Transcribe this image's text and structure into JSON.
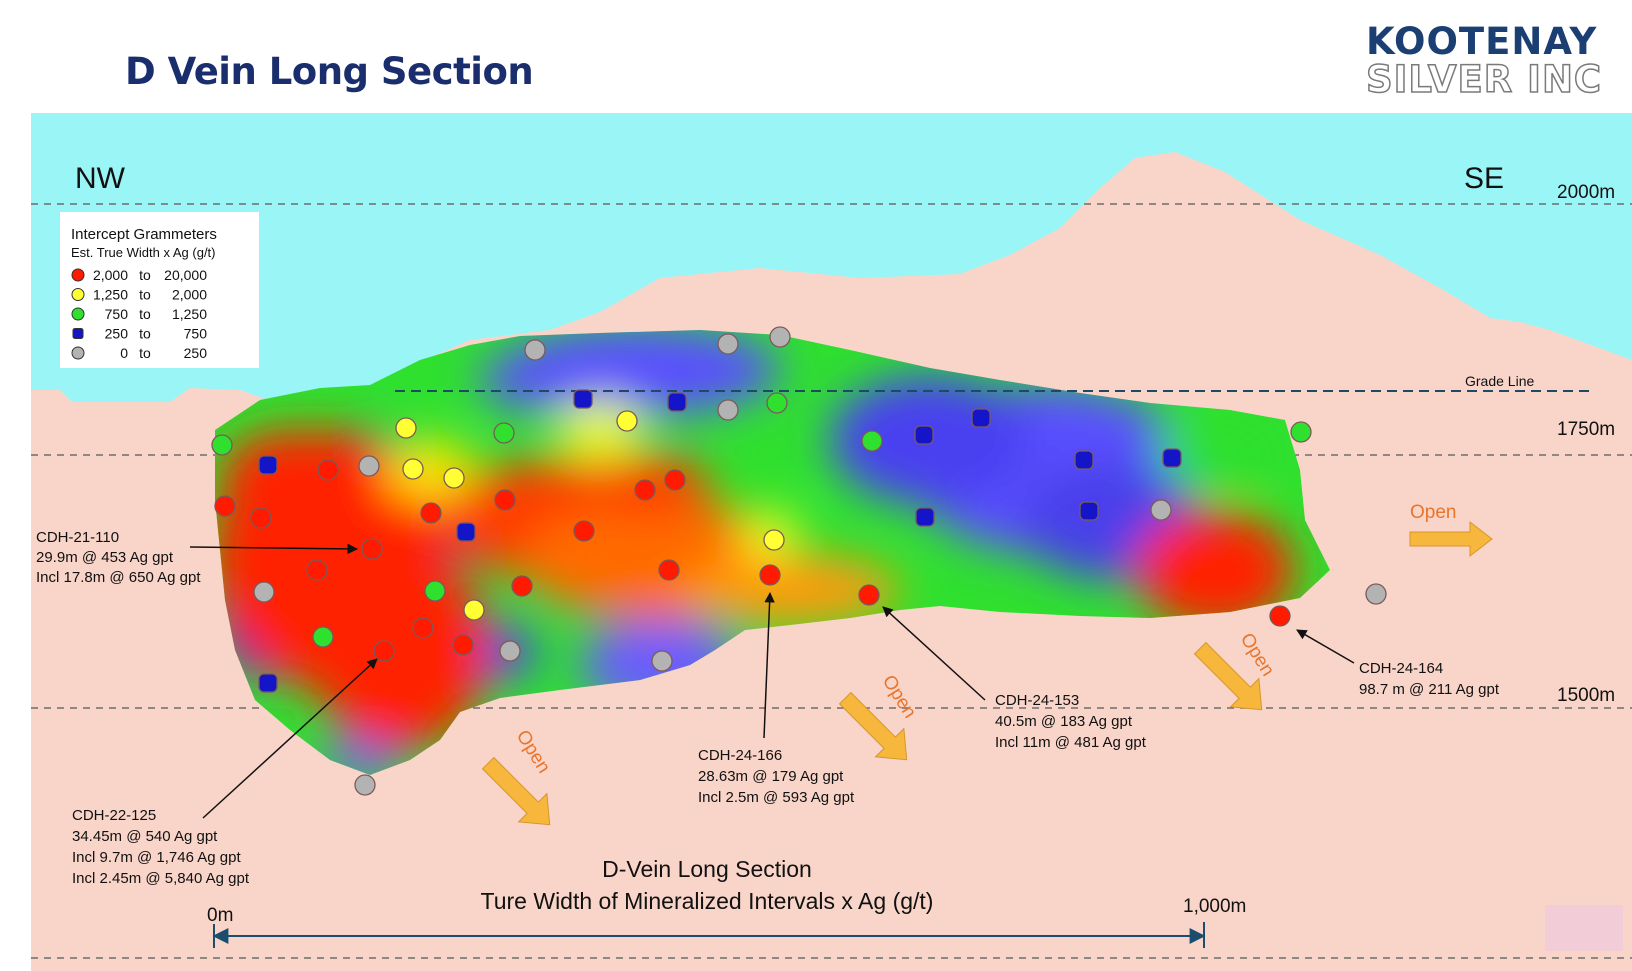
{
  "header": {
    "title": "D Vein Long Section",
    "logo_line1": "KOOTENAY",
    "logo_line2": "SILVER INC"
  },
  "section": {
    "direction_left": "NW",
    "direction_right": "SE",
    "elevations": [
      "2000m",
      "1750m",
      "1500m"
    ],
    "grade_line_label": "Grade Line",
    "open_label": "Open",
    "caption_line1": "D-Vein Long Section",
    "caption_line2": "Ture Width of Mineralized Intervals x Ag (g/t)",
    "scale_start": "0m",
    "scale_end": "1,000m",
    "colors": {
      "sky": "#9af5f6",
      "ground": "#f9d5c9",
      "high": "#ff1a00",
      "upper": "#ffff33",
      "mid": "#2fe02f",
      "low": "#1414c8",
      "trace": "#b3b3b3",
      "arrow": "#f6b73c",
      "open_text": "#e8752b"
    }
  },
  "legend": {
    "title": "Intercept Grammeters",
    "subtitle": "Est. True Width x Ag (g/t)",
    "rows": [
      {
        "from": "2,000",
        "to_word": "to",
        "to": "20,000",
        "color": "#ff1a00"
      },
      {
        "from": "1,250",
        "to_word": "to",
        "to": "2,000",
        "color": "#ffff33"
      },
      {
        "from": "750",
        "to_word": "to",
        "to": "1,250",
        "color": "#2fe02f"
      },
      {
        "from": "250",
        "to_word": "to",
        "to": "750",
        "color": "#1414c8"
      },
      {
        "from": "0",
        "to_word": "to",
        "to": "250",
        "color": "#b3b3b3"
      }
    ]
  },
  "callouts": [
    {
      "id": "cdh-21-110",
      "lines": [
        "CDH-21-110",
        "29.9m @ 453 Ag gpt",
        "Incl 17.8m @ 650 Ag gpt"
      ]
    },
    {
      "id": "cdh-22-125",
      "lines": [
        "CDH-22-125",
        "34.45m @ 540 Ag gpt",
        "Incl 9.7m @ 1,746 Ag gpt",
        "Incl 2.45m @ 5,840 Ag gpt"
      ]
    },
    {
      "id": "cdh-24-166",
      "lines": [
        "CDH-24-166",
        "28.63m @ 179 Ag gpt",
        "Incl 2.5m @ 593 Ag gpt"
      ]
    },
    {
      "id": "cdh-24-153",
      "lines": [
        "CDH-24-153",
        "40.5m @ 183 Ag gpt",
        "Incl 11m @ 481 Ag gpt"
      ]
    },
    {
      "id": "cdh-24-164",
      "lines": [
        "CDH-24-164",
        "98.7 m @ 211 Ag gpt"
      ]
    }
  ]
}
